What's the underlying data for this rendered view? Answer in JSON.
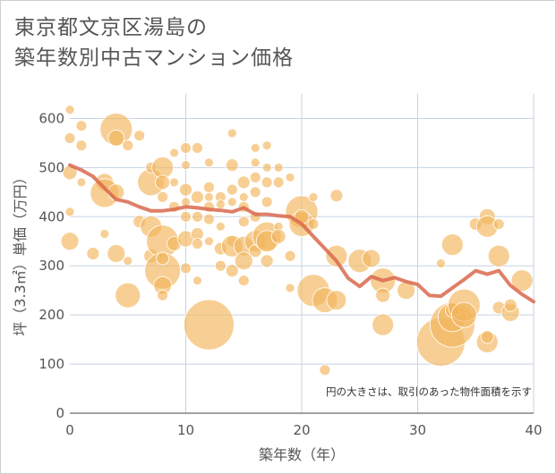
{
  "chart_data": {
    "type": "scatter",
    "title_line1": "東京都文京区湯島の",
    "title_line2": "築年数別中古マンション価格",
    "xlabel": "築年数（年）",
    "ylabel": "坪（3.3㎡）単価（万円）",
    "xlim": [
      0,
      40
    ],
    "ylim": [
      0,
      650
    ],
    "xticks": [
      "0",
      "10",
      "20",
      "30",
      "40"
    ],
    "yticks": [
      "0",
      "100",
      "200",
      "300",
      "400",
      "500",
      "600"
    ],
    "note": "円の大きさは、取引のあった物件面積を示す",
    "grid": true,
    "colors": {
      "bubble": "#f2b55c",
      "trend": "#d9694e",
      "grid": "#c6d3e2"
    },
    "trend": {
      "x": [
        0,
        1,
        2,
        3,
        4,
        5,
        6,
        7,
        8,
        9,
        10,
        11,
        12,
        13,
        14,
        15,
        16,
        17,
        18,
        19,
        20,
        21,
        22,
        23,
        24,
        25,
        26,
        27,
        28,
        29,
        30,
        31,
        32,
        33,
        34,
        35,
        36,
        37,
        38,
        39,
        40
      ],
      "y": [
        505,
        495,
        482,
        458,
        435,
        430,
        420,
        412,
        412,
        415,
        420,
        418,
        415,
        413,
        410,
        418,
        405,
        405,
        402,
        400,
        385,
        360,
        335,
        310,
        275,
        258,
        278,
        270,
        276,
        268,
        262,
        240,
        238,
        255,
        272,
        290,
        283,
        290,
        260,
        242,
        227
      ]
    },
    "points": [
      {
        "x": 0,
        "y": 618,
        "r": 5
      },
      {
        "x": 0,
        "y": 560,
        "r": 6
      },
      {
        "x": 0,
        "y": 490,
        "r": 8
      },
      {
        "x": 0,
        "y": 410,
        "r": 5
      },
      {
        "x": 0,
        "y": 350,
        "r": 10
      },
      {
        "x": 1,
        "y": 585,
        "r": 6
      },
      {
        "x": 1,
        "y": 545,
        "r": 6
      },
      {
        "x": 1,
        "y": 470,
        "r": 5
      },
      {
        "x": 2,
        "y": 325,
        "r": 7
      },
      {
        "x": 3,
        "y": 470,
        "r": 10
      },
      {
        "x": 3,
        "y": 448,
        "r": 16
      },
      {
        "x": 3,
        "y": 365,
        "r": 5
      },
      {
        "x": 4,
        "y": 578,
        "r": 18
      },
      {
        "x": 4,
        "y": 560,
        "r": 9
      },
      {
        "x": 4,
        "y": 450,
        "r": 9
      },
      {
        "x": 4,
        "y": 325,
        "r": 10
      },
      {
        "x": 5,
        "y": 545,
        "r": 6
      },
      {
        "x": 5,
        "y": 240,
        "r": 14
      },
      {
        "x": 5,
        "y": 310,
        "r": 5
      },
      {
        "x": 6,
        "y": 565,
        "r": 6
      },
      {
        "x": 6,
        "y": 390,
        "r": 7
      },
      {
        "x": 7,
        "y": 470,
        "r": 15
      },
      {
        "x": 7,
        "y": 500,
        "r": 6
      },
      {
        "x": 7,
        "y": 380,
        "r": 12
      },
      {
        "x": 7,
        "y": 320,
        "r": 8
      },
      {
        "x": 8,
        "y": 500,
        "r": 12
      },
      {
        "x": 8,
        "y": 470,
        "r": 8
      },
      {
        "x": 8,
        "y": 440,
        "r": 6
      },
      {
        "x": 8,
        "y": 350,
        "r": 18
      },
      {
        "x": 8,
        "y": 290,
        "r": 20
      },
      {
        "x": 8,
        "y": 260,
        "r": 10
      },
      {
        "x": 8,
        "y": 240,
        "r": 6
      },
      {
        "x": 8,
        "y": 315,
        "r": 7
      },
      {
        "x": 9,
        "y": 530,
        "r": 5
      },
      {
        "x": 9,
        "y": 420,
        "r": 6
      },
      {
        "x": 9,
        "y": 345,
        "r": 8
      },
      {
        "x": 9,
        "y": 470,
        "r": 5
      },
      {
        "x": 10,
        "y": 540,
        "r": 6
      },
      {
        "x": 10,
        "y": 505,
        "r": 5
      },
      {
        "x": 10,
        "y": 455,
        "r": 7
      },
      {
        "x": 10,
        "y": 400,
        "r": 6
      },
      {
        "x": 10,
        "y": 355,
        "r": 9
      },
      {
        "x": 10,
        "y": 295,
        "r": 6
      },
      {
        "x": 10,
        "y": 430,
        "r": 5
      },
      {
        "x": 11,
        "y": 540,
        "r": 6
      },
      {
        "x": 11,
        "y": 440,
        "r": 7
      },
      {
        "x": 11,
        "y": 400,
        "r": 6
      },
      {
        "x": 11,
        "y": 365,
        "r": 7
      },
      {
        "x": 11,
        "y": 345,
        "r": 6
      },
      {
        "x": 11,
        "y": 270,
        "r": 5
      },
      {
        "x": 12,
        "y": 510,
        "r": 5
      },
      {
        "x": 12,
        "y": 460,
        "r": 6
      },
      {
        "x": 12,
        "y": 440,
        "r": 5
      },
      {
        "x": 12,
        "y": 420,
        "r": 6
      },
      {
        "x": 12,
        "y": 395,
        "r": 6
      },
      {
        "x": 12,
        "y": 350,
        "r": 5
      },
      {
        "x": 12,
        "y": 180,
        "r": 28
      },
      {
        "x": 13,
        "y": 440,
        "r": 6
      },
      {
        "x": 13,
        "y": 380,
        "r": 5
      },
      {
        "x": 13,
        "y": 335,
        "r": 7
      },
      {
        "x": 13,
        "y": 300,
        "r": 6
      },
      {
        "x": 13,
        "y": 425,
        "r": 5
      },
      {
        "x": 14,
        "y": 570,
        "r": 5
      },
      {
        "x": 14,
        "y": 505,
        "r": 7
      },
      {
        "x": 14,
        "y": 455,
        "r": 6
      },
      {
        "x": 14,
        "y": 430,
        "r": 5
      },
      {
        "x": 14,
        "y": 350,
        "r": 6
      },
      {
        "x": 14,
        "y": 340,
        "r": 12
      },
      {
        "x": 14,
        "y": 290,
        "r": 7
      },
      {
        "x": 15,
        "y": 470,
        "r": 7
      },
      {
        "x": 15,
        "y": 420,
        "r": 6
      },
      {
        "x": 15,
        "y": 390,
        "r": 6
      },
      {
        "x": 15,
        "y": 340,
        "r": 11
      },
      {
        "x": 15,
        "y": 310,
        "r": 10
      },
      {
        "x": 15,
        "y": 270,
        "r": 6
      },
      {
        "x": 15,
        "y": 440,
        "r": 5
      },
      {
        "x": 16,
        "y": 540,
        "r": 5
      },
      {
        "x": 16,
        "y": 510,
        "r": 5
      },
      {
        "x": 16,
        "y": 480,
        "r": 6
      },
      {
        "x": 16,
        "y": 450,
        "r": 6
      },
      {
        "x": 16,
        "y": 400,
        "r": 6
      },
      {
        "x": 16,
        "y": 350,
        "r": 12
      },
      {
        "x": 16,
        "y": 330,
        "r": 7
      },
      {
        "x": 17,
        "y": 545,
        "r": 5
      },
      {
        "x": 17,
        "y": 500,
        "r": 5
      },
      {
        "x": 17,
        "y": 470,
        "r": 6
      },
      {
        "x": 17,
        "y": 430,
        "r": 6
      },
      {
        "x": 17,
        "y": 360,
        "r": 16
      },
      {
        "x": 17,
        "y": 350,
        "r": 12
      },
      {
        "x": 17,
        "y": 310,
        "r": 7
      },
      {
        "x": 18,
        "y": 500,
        "r": 5
      },
      {
        "x": 18,
        "y": 470,
        "r": 6
      },
      {
        "x": 18,
        "y": 380,
        "r": 5
      },
      {
        "x": 18,
        "y": 360,
        "r": 8
      },
      {
        "x": 19,
        "y": 480,
        "r": 5
      },
      {
        "x": 19,
        "y": 320,
        "r": 6
      },
      {
        "x": 19,
        "y": 255,
        "r": 5
      },
      {
        "x": 20,
        "y": 410,
        "r": 18
      },
      {
        "x": 20,
        "y": 385,
        "r": 14
      },
      {
        "x": 20,
        "y": 400,
        "r": 8
      },
      {
        "x": 21,
        "y": 440,
        "r": 5
      },
      {
        "x": 21,
        "y": 385,
        "r": 6
      },
      {
        "x": 21,
        "y": 250,
        "r": 18
      },
      {
        "x": 22,
        "y": 230,
        "r": 14
      },
      {
        "x": 22,
        "y": 88,
        "r": 6
      },
      {
        "x": 23,
        "y": 443,
        "r": 7
      },
      {
        "x": 23,
        "y": 320,
        "r": 12
      },
      {
        "x": 23,
        "y": 230,
        "r": 11
      },
      {
        "x": 25,
        "y": 310,
        "r": 13
      },
      {
        "x": 26,
        "y": 315,
        "r": 10
      },
      {
        "x": 27,
        "y": 270,
        "r": 14
      },
      {
        "x": 27,
        "y": 240,
        "r": 8
      },
      {
        "x": 27,
        "y": 180,
        "r": 12
      },
      {
        "x": 29,
        "y": 250,
        "r": 10
      },
      {
        "x": 32,
        "y": 305,
        "r": 5
      },
      {
        "x": 32,
        "y": 145,
        "r": 27
      },
      {
        "x": 33,
        "y": 180,
        "r": 25
      },
      {
        "x": 33,
        "y": 195,
        "r": 16
      },
      {
        "x": 33,
        "y": 343,
        "r": 12
      },
      {
        "x": 33,
        "y": 210,
        "r": 8
      },
      {
        "x": 34,
        "y": 220,
        "r": 18
      },
      {
        "x": 34,
        "y": 200,
        "r": 14
      },
      {
        "x": 35,
        "y": 385,
        "r": 7
      },
      {
        "x": 36,
        "y": 400,
        "r": 9
      },
      {
        "x": 36,
        "y": 380,
        "r": 12
      },
      {
        "x": 36,
        "y": 145,
        "r": 12
      },
      {
        "x": 36,
        "y": 155,
        "r": 7
      },
      {
        "x": 37,
        "y": 320,
        "r": 12
      },
      {
        "x": 37,
        "y": 385,
        "r": 6
      },
      {
        "x": 37,
        "y": 215,
        "r": 7
      },
      {
        "x": 38,
        "y": 205,
        "r": 10
      },
      {
        "x": 38,
        "y": 220,
        "r": 7
      },
      {
        "x": 39,
        "y": 270,
        "r": 12
      }
    ]
  }
}
